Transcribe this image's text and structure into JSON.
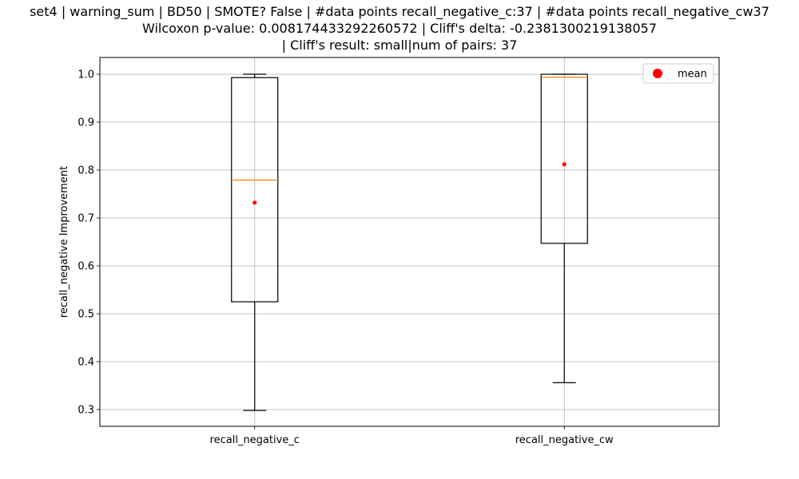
{
  "chart_data": {
    "type": "box",
    "title_lines": [
      "set4 | warning_sum | BD50 | SMOTE? False | #data points recall_negative_c:37 | #data points recall_negative_cw37",
      "Wilcoxon p-value: 0.008174433292260572 | Cliff's delta: -0.2381300219138057",
      "| Cliff's result: small|num of pairs: 37"
    ],
    "ylabel": "recall_negative Improvement",
    "xlabel": "",
    "categories": [
      "recall_negative_c",
      "recall_negative_cw"
    ],
    "boxes": [
      {
        "name": "recall_negative_c",
        "whisker_low": 0.298,
        "q1": 0.525,
        "median": 0.779,
        "q3": 0.993,
        "whisker_high": 1.0,
        "mean": 0.732
      },
      {
        "name": "recall_negative_cw",
        "whisker_low": 0.356,
        "q1": 0.647,
        "median": 0.994,
        "q3": 1.0,
        "whisker_high": 1.0,
        "mean": 0.812
      }
    ],
    "ylim": [
      0.265,
      1.035
    ],
    "yticks": [
      0.3,
      0.4,
      0.5,
      0.6,
      0.7,
      0.8,
      0.9,
      1.0
    ],
    "ytick_labels": [
      "0.3",
      "0.4",
      "0.5",
      "0.6",
      "0.7",
      "0.8",
      "0.9",
      "1.0"
    ],
    "grid": true,
    "legend": {
      "position": "top-right",
      "entries": [
        {
          "label": "mean",
          "color": "#ff0000"
        }
      ]
    },
    "colors": {
      "box": "#000000",
      "median": "#ff7f0e",
      "mean": "#ff0000",
      "grid": "#b0b0b0"
    }
  }
}
